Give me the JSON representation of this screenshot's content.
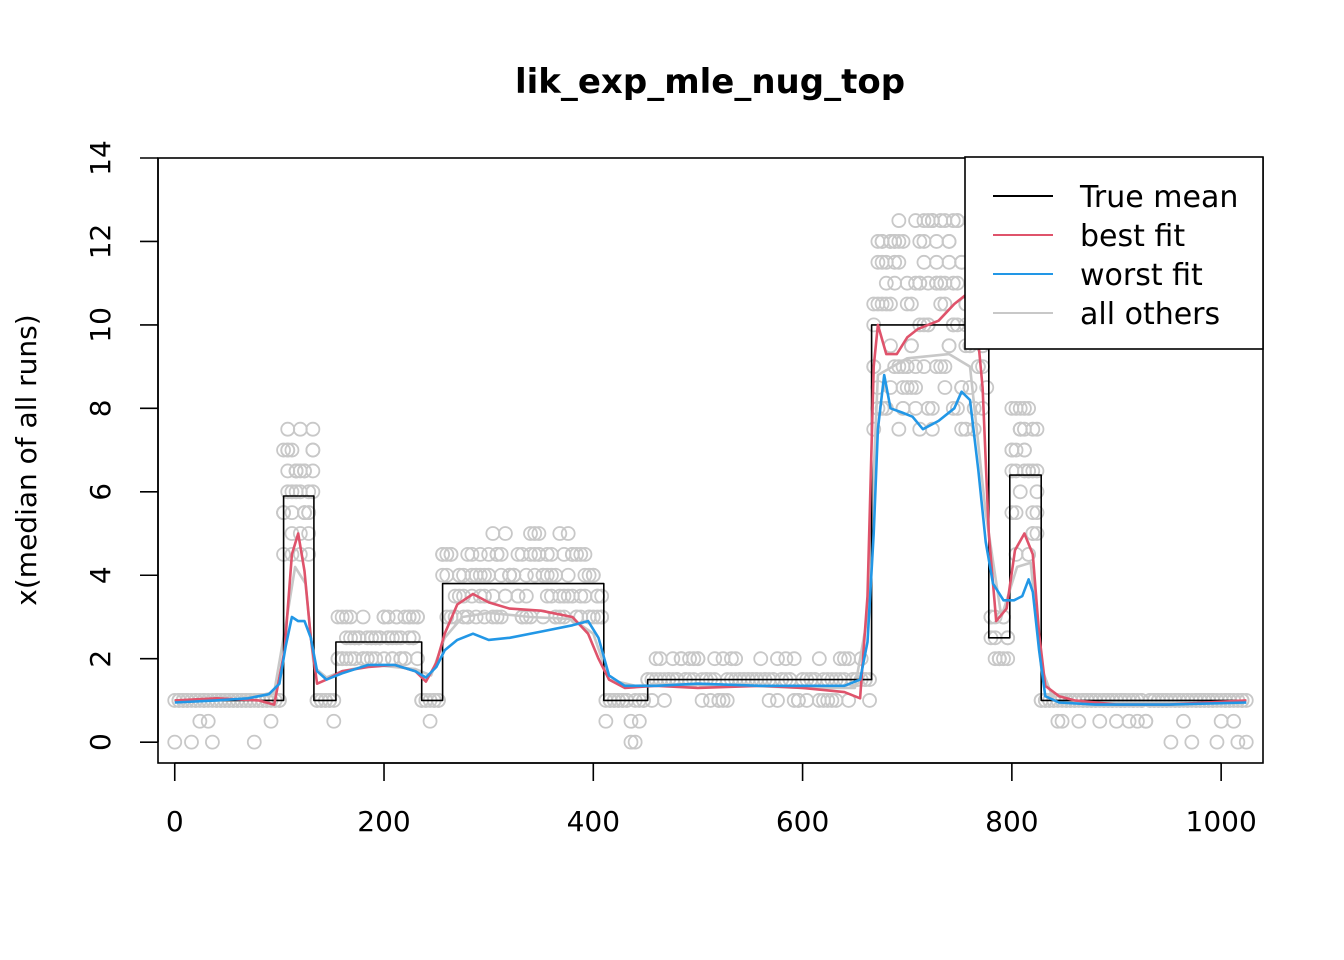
{
  "chart_data": {
    "type": "line",
    "title": "lik_exp_mle_nug_top",
    "xlabel": "",
    "ylabel": "x(median of all runs)",
    "xlim": [
      -16,
      1040
    ],
    "ylim": [
      -0.5,
      14
    ],
    "xticks": [
      0,
      200,
      400,
      600,
      800,
      1000
    ],
    "yticks": [
      0,
      2,
      4,
      6,
      8,
      10,
      12,
      14
    ],
    "grid": false,
    "legend": {
      "position": "top-right",
      "entries": [
        {
          "label": "True mean",
          "color": "#000000"
        },
        {
          "label": "best fit",
          "color": "#DF536B"
        },
        {
          "label": "worst fit",
          "color": "#2297E6"
        },
        {
          "label": "all others",
          "color": "#C8C8C8"
        }
      ]
    },
    "series": [
      {
        "name": "True mean",
        "color": "#000000",
        "step": true,
        "points": [
          [
            0,
            1
          ],
          [
            104,
            1
          ],
          [
            104,
            5.9
          ],
          [
            133,
            5.9
          ],
          [
            133,
            1
          ],
          [
            154,
            1
          ],
          [
            154,
            2.4
          ],
          [
            236,
            2.4
          ],
          [
            236,
            1
          ],
          [
            256,
            1
          ],
          [
            256,
            3.8
          ],
          [
            410,
            3.8
          ],
          [
            410,
            1
          ],
          [
            452,
            1
          ],
          [
            452,
            1.5
          ],
          [
            666,
            1.5
          ],
          [
            666,
            10
          ],
          [
            778,
            10
          ],
          [
            778,
            2.5
          ],
          [
            798,
            2.5
          ],
          [
            798,
            6.4
          ],
          [
            828,
            6.4
          ],
          [
            828,
            1
          ],
          [
            1024,
            1
          ]
        ]
      },
      {
        "name": "best fit",
        "color": "#DF536B",
        "points": [
          [
            0,
            1.0
          ],
          [
            40,
            1.05
          ],
          [
            80,
            1.0
          ],
          [
            95,
            0.9
          ],
          [
            105,
            2.2
          ],
          [
            112,
            4.5
          ],
          [
            118,
            5.0
          ],
          [
            124,
            4.1
          ],
          [
            130,
            2.5
          ],
          [
            136,
            1.4
          ],
          [
            145,
            1.5
          ],
          [
            160,
            1.7
          ],
          [
            185,
            1.8
          ],
          [
            210,
            1.85
          ],
          [
            230,
            1.7
          ],
          [
            240,
            1.45
          ],
          [
            250,
            1.9
          ],
          [
            258,
            2.6
          ],
          [
            270,
            3.3
          ],
          [
            285,
            3.55
          ],
          [
            300,
            3.35
          ],
          [
            320,
            3.2
          ],
          [
            350,
            3.15
          ],
          [
            380,
            3.0
          ],
          [
            395,
            2.6
          ],
          [
            405,
            2.0
          ],
          [
            415,
            1.5
          ],
          [
            430,
            1.3
          ],
          [
            460,
            1.35
          ],
          [
            500,
            1.3
          ],
          [
            560,
            1.35
          ],
          [
            600,
            1.3
          ],
          [
            640,
            1.2
          ],
          [
            655,
            1.05
          ],
          [
            662,
            3.5
          ],
          [
            668,
            9.0
          ],
          [
            672,
            10.0
          ],
          [
            680,
            9.3
          ],
          [
            690,
            9.3
          ],
          [
            700,
            9.7
          ],
          [
            710,
            9.9
          ],
          [
            730,
            10.1
          ],
          [
            745,
            10.5
          ],
          [
            755,
            10.7
          ],
          [
            765,
            10.4
          ],
          [
            772,
            8.5
          ],
          [
            778,
            5.0
          ],
          [
            785,
            2.9
          ],
          [
            795,
            3.2
          ],
          [
            803,
            4.6
          ],
          [
            812,
            5.0
          ],
          [
            820,
            4.5
          ],
          [
            826,
            2.6
          ],
          [
            832,
            1.35
          ],
          [
            845,
            1.1
          ],
          [
            860,
            1.0
          ],
          [
            900,
            0.9
          ],
          [
            950,
            0.9
          ],
          [
            1024,
            1.0
          ]
        ]
      },
      {
        "name": "worst fit",
        "color": "#2297E6",
        "points": [
          [
            0,
            0.95
          ],
          [
            40,
            1.0
          ],
          [
            70,
            1.05
          ],
          [
            90,
            1.15
          ],
          [
            100,
            1.4
          ],
          [
            106,
            2.3
          ],
          [
            112,
            3.0
          ],
          [
            118,
            2.9
          ],
          [
            124,
            2.9
          ],
          [
            130,
            2.5
          ],
          [
            136,
            1.7
          ],
          [
            145,
            1.5
          ],
          [
            160,
            1.65
          ],
          [
            185,
            1.85
          ],
          [
            210,
            1.85
          ],
          [
            230,
            1.7
          ],
          [
            240,
            1.55
          ],
          [
            250,
            1.8
          ],
          [
            258,
            2.2
          ],
          [
            270,
            2.45
          ],
          [
            285,
            2.6
          ],
          [
            300,
            2.45
          ],
          [
            320,
            2.5
          ],
          [
            350,
            2.65
          ],
          [
            380,
            2.8
          ],
          [
            395,
            2.9
          ],
          [
            405,
            2.5
          ],
          [
            415,
            1.6
          ],
          [
            430,
            1.35
          ],
          [
            460,
            1.35
          ],
          [
            500,
            1.4
          ],
          [
            560,
            1.35
          ],
          [
            600,
            1.35
          ],
          [
            640,
            1.35
          ],
          [
            655,
            1.5
          ],
          [
            662,
            2.4
          ],
          [
            668,
            5.0
          ],
          [
            672,
            7.5
          ],
          [
            678,
            8.8
          ],
          [
            684,
            8.0
          ],
          [
            695,
            7.9
          ],
          [
            705,
            7.8
          ],
          [
            715,
            7.5
          ],
          [
            730,
            7.7
          ],
          [
            745,
            8.0
          ],
          [
            752,
            8.4
          ],
          [
            760,
            8.2
          ],
          [
            768,
            6.5
          ],
          [
            775,
            4.8
          ],
          [
            782,
            3.8
          ],
          [
            792,
            3.4
          ],
          [
            802,
            3.4
          ],
          [
            810,
            3.5
          ],
          [
            816,
            3.9
          ],
          [
            820,
            3.6
          ],
          [
            826,
            2.2
          ],
          [
            832,
            1.1
          ],
          [
            845,
            0.95
          ],
          [
            880,
            0.9
          ],
          [
            950,
            0.9
          ],
          [
            1024,
            0.95
          ]
        ]
      },
      {
        "name": "all others",
        "color": "#C8C8C8",
        "points": [
          [
            0,
            1.0
          ],
          [
            60,
            1.0
          ],
          [
            95,
            1.2
          ],
          [
            106,
            2.8
          ],
          [
            115,
            4.2
          ],
          [
            125,
            3.8
          ],
          [
            133,
            1.8
          ],
          [
            145,
            1.55
          ],
          [
            160,
            1.7
          ],
          [
            190,
            1.85
          ],
          [
            230,
            1.75
          ],
          [
            245,
            1.6
          ],
          [
            258,
            2.5
          ],
          [
            275,
            3.0
          ],
          [
            300,
            3.1
          ],
          [
            340,
            3.0
          ],
          [
            380,
            2.95
          ],
          [
            400,
            2.6
          ],
          [
            415,
            1.5
          ],
          [
            440,
            1.35
          ],
          [
            500,
            1.4
          ],
          [
            600,
            1.3
          ],
          [
            650,
            1.3
          ],
          [
            662,
            3.0
          ],
          [
            672,
            8.8
          ],
          [
            700,
            9.2
          ],
          [
            740,
            9.3
          ],
          [
            760,
            9.0
          ],
          [
            775,
            5.5
          ],
          [
            790,
            3.0
          ],
          [
            805,
            4.2
          ],
          [
            818,
            4.3
          ],
          [
            828,
            1.8
          ],
          [
            840,
            1.0
          ],
          [
            900,
            0.95
          ],
          [
            1024,
            0.95
          ]
        ]
      }
    ]
  }
}
